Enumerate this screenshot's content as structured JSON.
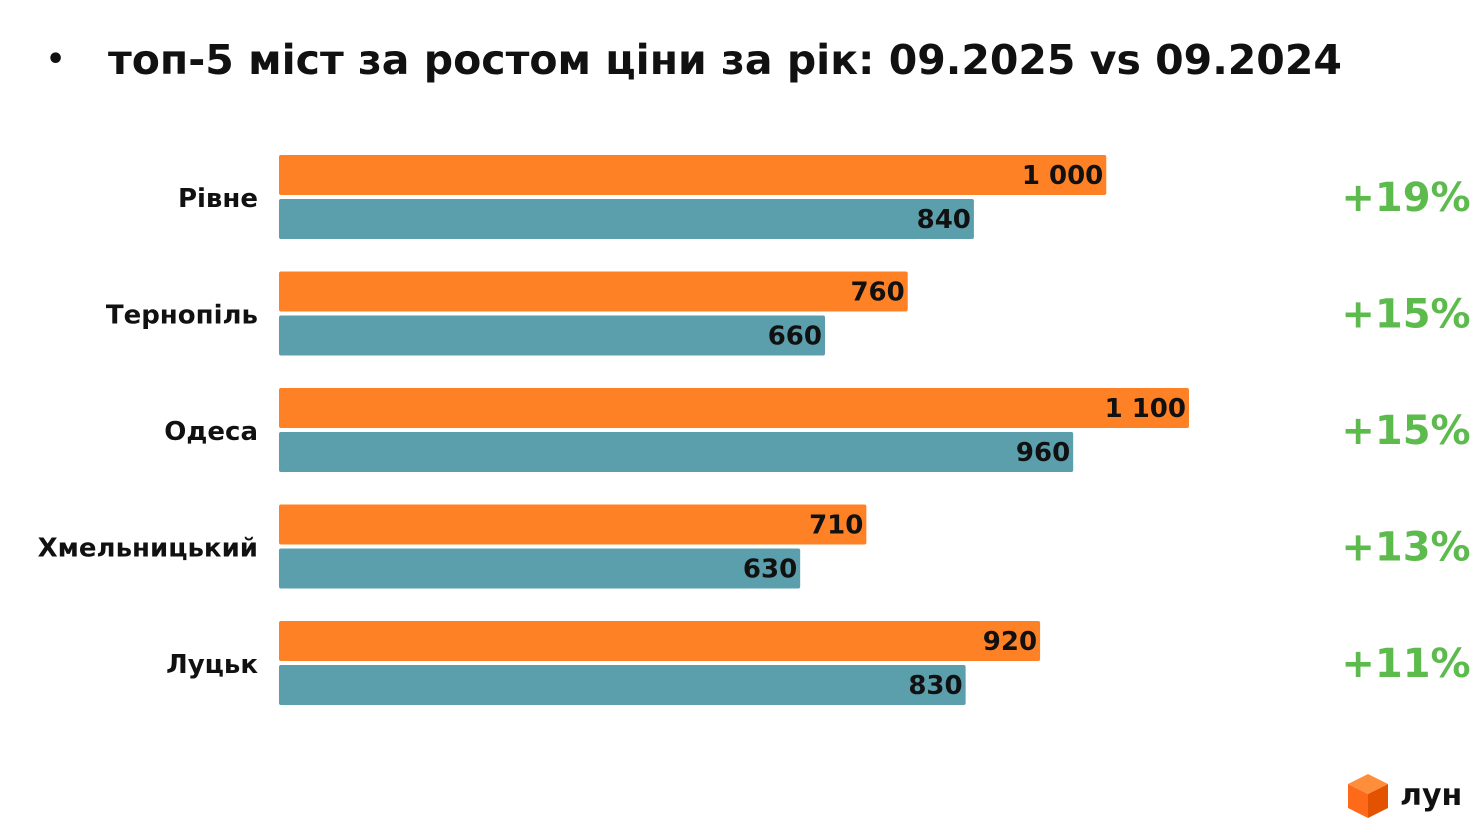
{
  "title": "топ-5 міст за ростом ціни за рік: 09.2025 vs 09.2024",
  "bullet": "•",
  "logo": {
    "text": "лун",
    "icon": "cube-icon"
  },
  "colors": {
    "current": "#FF8126",
    "previous": "#5B9FAD",
    "growth": "#5DBB4D",
    "logo_cube": "#FF6A1A"
  },
  "chart_data": {
    "type": "bar",
    "orientation": "horizontal",
    "categories": [
      "Рівне",
      "Тернопіль",
      "Одеса",
      "Хмельницький",
      "Луцьк"
    ],
    "series": [
      {
        "values": [
          1000,
          760,
          1100,
          710,
          920
        ],
        "labels": [
          "1 000",
          "760",
          "1 100",
          "710",
          "920"
        ]
      },
      {
        "values": [
          840,
          660,
          960,
          630,
          830
        ],
        "labels": [
          "840",
          "660",
          "960",
          "630",
          "830"
        ]
      }
    ],
    "annotations": [
      "+19%",
      "+15%",
      "+15%",
      "+13%",
      "+11%"
    ],
    "xlim": [
      0,
      1100
    ],
    "grid": false,
    "legend": "none"
  }
}
